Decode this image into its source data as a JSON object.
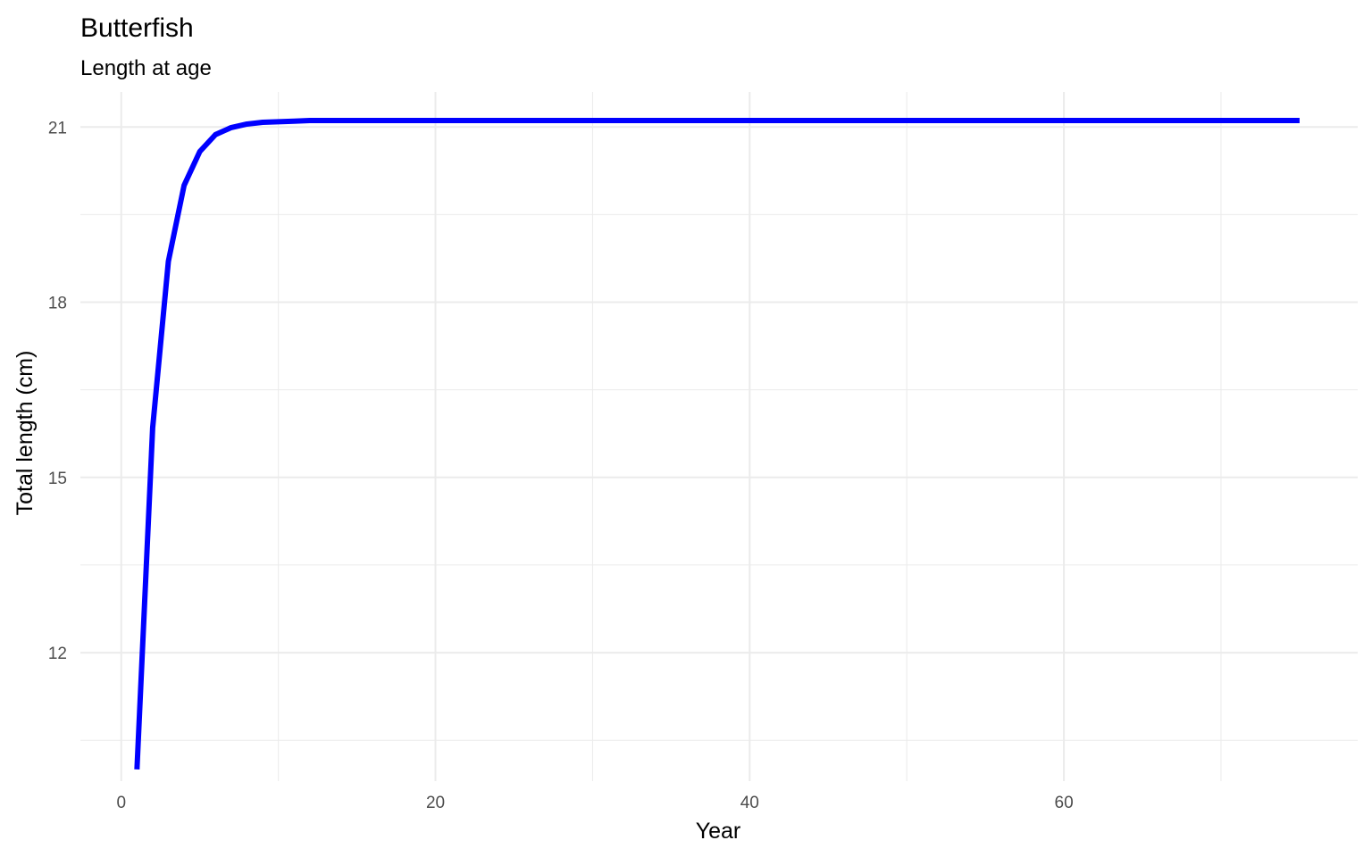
{
  "chart_data": {
    "type": "line",
    "title": "Butterfish",
    "subtitle": "Length at age",
    "xlabel": "Year",
    "ylabel": "Total length (cm)",
    "xlim": [
      -2.6,
      78.7
    ],
    "ylim": [
      9.8,
      21.6
    ],
    "x_ticks": [
      0,
      20,
      40,
      60
    ],
    "x_minor_ticks": [
      10,
      30,
      50,
      70
    ],
    "y_ticks": [
      12,
      15,
      18,
      21
    ],
    "y_minor_ticks": [
      10.5,
      13.5,
      16.5,
      19.5
    ],
    "grid": true,
    "legend": "none",
    "line_color": "#0000ff",
    "series": [
      {
        "x": [
          1,
          2,
          3,
          4,
          5,
          6,
          7,
          8,
          9,
          10,
          11,
          12,
          15,
          20,
          25,
          30,
          35,
          40,
          45,
          50,
          55,
          60,
          65,
          70,
          75
        ],
        "y": [
          10.0,
          15.85,
          18.7,
          20.0,
          20.58,
          20.87,
          20.99,
          21.05,
          21.08,
          21.09,
          21.1,
          21.11,
          21.11,
          21.11,
          21.11,
          21.11,
          21.11,
          21.11,
          21.11,
          21.11,
          21.11,
          21.11,
          21.11,
          21.11,
          21.11
        ]
      }
    ]
  }
}
